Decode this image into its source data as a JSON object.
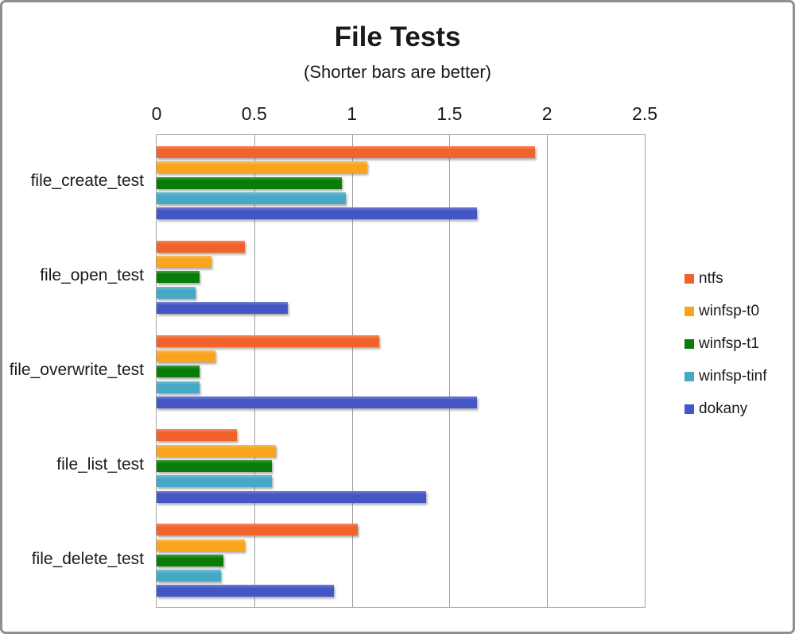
{
  "window": {
    "kind": "chart"
  },
  "chart_data": {
    "type": "bar",
    "orientation": "horizontal",
    "title": "File Tests",
    "subtitle": "(Shorter bars are better)",
    "xlabel": "",
    "ylabel": "",
    "xlim": [
      0,
      2.5
    ],
    "x_ticks": [
      0,
      0.5,
      1,
      1.5,
      2,
      2.5
    ],
    "x_tick_labels": [
      "0",
      "0.5",
      "1",
      "1.5",
      "2",
      "2.5"
    ],
    "grid": true,
    "legend_position": "right",
    "categories": [
      "file_create_test",
      "file_open_test",
      "file_overwrite_test",
      "file_list_test",
      "file_delete_test"
    ],
    "series": [
      {
        "name": "ntfs",
        "color": "#F2622B",
        "values": [
          1.94,
          0.45,
          1.14,
          0.41,
          1.03
        ]
      },
      {
        "name": "winfsp-t0",
        "color": "#FAA41E",
        "values": [
          1.08,
          0.28,
          0.3,
          0.61,
          0.45
        ]
      },
      {
        "name": "winfsp-t1",
        "color": "#077D07",
        "values": [
          0.95,
          0.22,
          0.22,
          0.59,
          0.34
        ]
      },
      {
        "name": "winfsp-tinf",
        "color": "#45A9C6",
        "values": [
          0.97,
          0.2,
          0.22,
          0.59,
          0.33
        ]
      },
      {
        "name": "dokany",
        "color": "#4456C6",
        "values": [
          1.64,
          0.67,
          1.64,
          1.38,
          0.91
        ]
      }
    ]
  },
  "colors": {
    "grid": "#9E9E9E",
    "plot_border": "#A6A6A6",
    "window_border": "#8F8F8F",
    "text": "#1A1A1A"
  }
}
